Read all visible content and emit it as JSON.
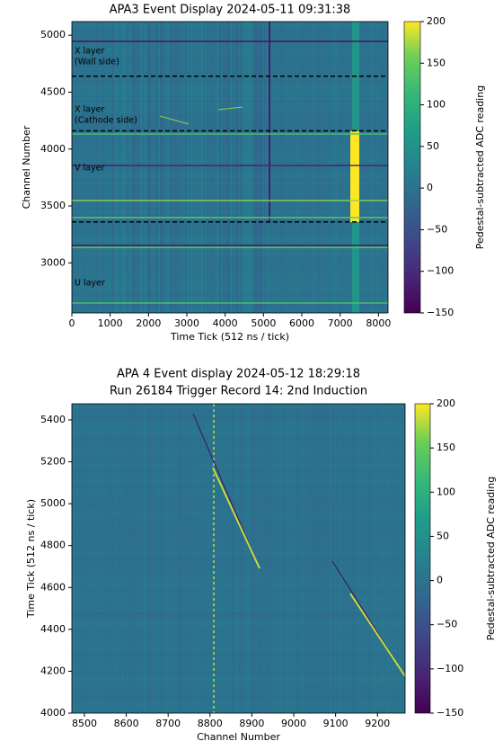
{
  "chart_data": [
    {
      "type": "heatmap",
      "title": "APA3 Event Display 2024-05-11 09:31:38",
      "xlabel": "Time Tick (512 ns / tick)",
      "ylabel": "Channel Number",
      "xlim": [
        0,
        8250
      ],
      "ylim": [
        2560,
        5120
      ],
      "xticks": [
        0,
        1000,
        2000,
        3000,
        4000,
        5000,
        6000,
        7000,
        8000
      ],
      "yticks": [
        3000,
        3500,
        4000,
        4500,
        5000
      ],
      "colormap": "viridis",
      "zlim": [
        -150,
        200
      ],
      "zticks": [
        {
          "value": -150,
          "label": "−150"
        },
        {
          "value": -100,
          "label": "−100"
        },
        {
          "value": -50,
          "label": "−50"
        },
        0,
        50,
        100,
        150,
        200
      ],
      "zlabel": "Pedestal-subtracted ADC reading",
      "boundaries": [
        4640,
        4160,
        3360
      ],
      "annotations": [
        [
          "X layer",
          "(Wall side)"
        ],
        [
          "X layer",
          "(Cathode side)"
        ],
        [
          "V layer"
        ],
        [
          "U layer"
        ]
      ]
    },
    {
      "type": "heatmap",
      "title": "APA 4 Event display 2024-05-12 18:29:18",
      "subtitle": "Run 26184 Trigger Record 14: 2nd Induction",
      "xlabel": "Channel Number",
      "ylabel": "Time Tick (512 ns / tick)",
      "xlim": [
        8470,
        9266
      ],
      "ylim": [
        4000,
        5477
      ],
      "xticks": [
        8500,
        8600,
        8700,
        8800,
        8900,
        9000,
        9100,
        9200
      ],
      "yticks": [
        4000,
        4200,
        4400,
        4600,
        4800,
        5000,
        5200,
        5400
      ],
      "colormap": "viridis",
      "zlim": [
        -150,
        200
      ],
      "zticks": [
        {
          "value": -150,
          "label": "−150"
        },
        {
          "value": -100,
          "label": "−100"
        },
        {
          "value": -50,
          "label": "−50"
        },
        0,
        50,
        100,
        150,
        200
      ],
      "zlabel": "Pedestal-subtracted ADC reading"
    }
  ]
}
